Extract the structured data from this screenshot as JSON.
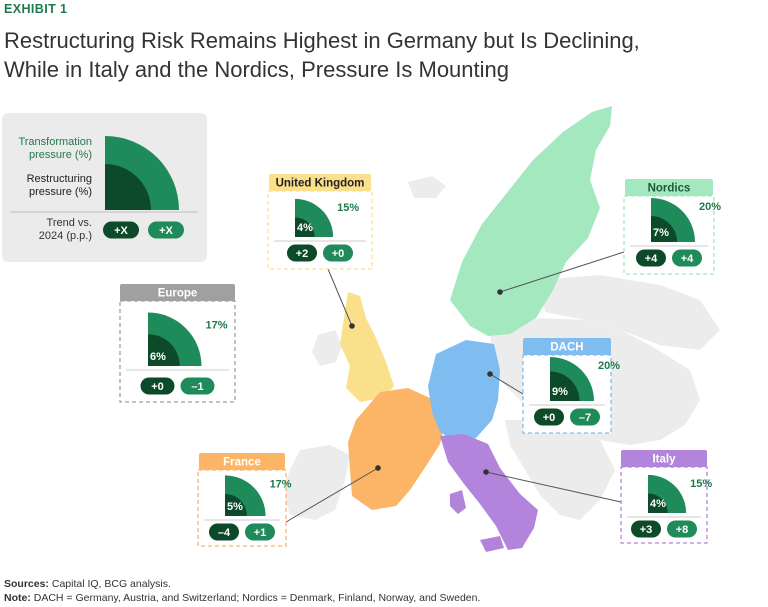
{
  "exhibit": "EXHIBIT 1",
  "title_lines": [
    "Restructuring Risk Remains Highest in Germany but Is Declining,",
    "While in Italy and the Nordics, Pressure Is Mounting"
  ],
  "legend": {
    "transformation_label": [
      "Transformation",
      "pressure (%)"
    ],
    "restructuring_label": [
      "Restructuring",
      "pressure (%)"
    ],
    "trend_label": [
      "Trend vs.",
      "2024 (p.p.)"
    ],
    "trend_restructuring": "+X",
    "trend_transformation": "+X"
  },
  "colors": {
    "transformation": "#1f8a5a",
    "restructuring": "#0d4a2a",
    "brand": "#1e7a4c",
    "uk": "#fbe08c",
    "nordics": "#a3e8bf",
    "dach": "#7fbdf0",
    "france": "#fcb466",
    "italy": "#b284dc",
    "europe": "#a0a0a0",
    "land": "#ececec"
  },
  "chart_data": {
    "type": "quarter-circle-comparison",
    "regions": [
      {
        "name": "United Kingdom",
        "transformation": 15,
        "restructuring": 4,
        "trend_restructuring": "+2",
        "trend_transformation": "+0"
      },
      {
        "name": "Nordics",
        "transformation": 20,
        "restructuring": 7,
        "trend_restructuring": "+4",
        "trend_transformation": "+4"
      },
      {
        "name": "Europe",
        "transformation": 17,
        "restructuring": 6,
        "trend_restructuring": "+0",
        "trend_transformation": "–1"
      },
      {
        "name": "DACH",
        "transformation": 20,
        "restructuring": 9,
        "trend_restructuring": "+0",
        "trend_transformation": "–7"
      },
      {
        "name": "France",
        "transformation": 17,
        "restructuring": 5,
        "trend_restructuring": "–4",
        "trend_transformation": "+1"
      },
      {
        "name": "Italy",
        "transformation": 15,
        "restructuring": 4,
        "trend_restructuring": "+3",
        "trend_transformation": "+8"
      }
    ]
  },
  "sources": {
    "label": "Sources:",
    "text": "Capital IQ, BCG analysis."
  },
  "note": {
    "label": "Note:",
    "text": "DACH = Germany, Austria, and Switzerland; Nordics = Denmark, Finland, Norway, and Sweden."
  }
}
